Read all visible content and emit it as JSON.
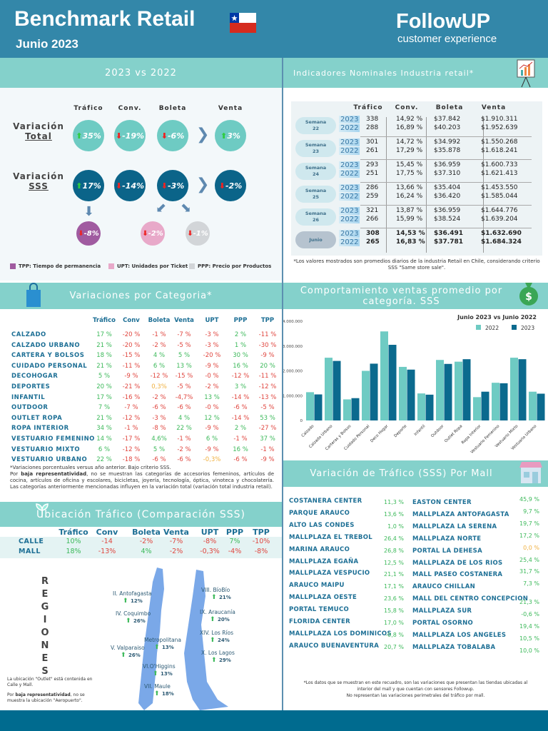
{
  "header": {
    "title": "Benchmark Retail",
    "subtitle": "Junio 2023",
    "logo": "FollowUP",
    "logo_tagline": "customer experience",
    "flag_icon": "chile-flag"
  },
  "bands": {
    "left1": "2023 vs 2022",
    "right1": "Indicadores Nominales Industria retail*",
    "left2": "Variaciones por Categoria*",
    "right2": "Comportamiento ventas promedio por categoría. SSS",
    "left3": "Ubicación Tráfico (Comparación SSS)",
    "right3": "Variación de Tráfico (SSS) Por Mall"
  },
  "summary": {
    "columns": [
      "Tráfico",
      "Conv.",
      "Boleta",
      "Venta"
    ],
    "row_total": {
      "label": "Variación",
      "sublabel": "Total",
      "values": [
        "35%",
        "-19%",
        "-6%",
        "3%"
      ],
      "dirs": [
        "up",
        "down",
        "down",
        "up"
      ]
    },
    "row_sss": {
      "label": "Variación",
      "sublabel": "SSS",
      "values": [
        "17%",
        "-14%",
        "-3%",
        "-2%"
      ],
      "dirs": [
        "up",
        "down",
        "down",
        "down"
      ]
    },
    "breakdown": {
      "tpp": "-8%",
      "upt": "-2%",
      "ppp": "-1%"
    },
    "legend": [
      "TPP: Tiempo de permanencia",
      "UPT: Unidades por Ticket",
      "PPP: Precio por Productos"
    ],
    "colors": {
      "total": "#6ecbc3",
      "sss": "#0b6489",
      "tpp": "#a05ba0",
      "upt": "#e8a9c9",
      "ppp": "#d2d5d8"
    }
  },
  "nominal": {
    "columns": [
      "Tráfico",
      "Conv.",
      "Boleta",
      "Venta"
    ],
    "rows": [
      {
        "label": "Semana",
        "sub": "22",
        "years": [
          "2023",
          "2022"
        ],
        "trafico": [
          "338",
          "288"
        ],
        "conv": [
          "14,92 %",
          "16,89 %"
        ],
        "boleta": [
          "$37.842",
          "$40.203"
        ],
        "venta": [
          "$1.910.311",
          "$1.952.639"
        ]
      },
      {
        "label": "Semana",
        "sub": "23",
        "years": [
          "2023",
          "2022"
        ],
        "trafico": [
          "301",
          "261"
        ],
        "conv": [
          "14,72 %",
          "17,29 %"
        ],
        "boleta": [
          "$34.992",
          "$35.878"
        ],
        "venta": [
          "$1.550.268",
          "$1.618.241"
        ]
      },
      {
        "label": "Semana",
        "sub": "24",
        "years": [
          "2023",
          "2022"
        ],
        "trafico": [
          "293",
          "251"
        ],
        "conv": [
          "15,45 %",
          "17,75 %"
        ],
        "boleta": [
          "$36.959",
          "$37.310"
        ],
        "venta": [
          "$1.600.733",
          "$1.621.413"
        ]
      },
      {
        "label": "Semana",
        "sub": "25",
        "years": [
          "2023",
          "2022"
        ],
        "trafico": [
          "286",
          "259"
        ],
        "conv": [
          "13,66 %",
          "16,24 %"
        ],
        "boleta": [
          "$35.404",
          "$36.420"
        ],
        "venta": [
          "$1.453.550",
          "$1.585.044"
        ]
      },
      {
        "label": "Semana",
        "sub": "26",
        "years": [
          "2023",
          "2022"
        ],
        "trafico": [
          "321",
          "266"
        ],
        "conv": [
          "13,87 %",
          "15,99 %"
        ],
        "boleta": [
          "$36.959",
          "$38.524"
        ],
        "venta": [
          "$1.644.776",
          "$1.639.204"
        ]
      },
      {
        "label": "Junio",
        "sub": "",
        "years": [
          "2023",
          "2022"
        ],
        "trafico": [
          "308",
          "265"
        ],
        "conv": [
          "14,53 %",
          "16,83 %"
        ],
        "boleta": [
          "$36.491",
          "$37.781"
        ],
        "venta": [
          "$1.632.690",
          "$1.684.324"
        ]
      }
    ],
    "note": "*Los valores mostrados son promedios diarios de la industria Retail en Chile, considerando criterio SSS \"Same store sale\"."
  },
  "categories": {
    "columns": [
      "Tráfico",
      "Conv",
      "Boleta",
      "Venta",
      "UPT",
      "PPP",
      "TPP"
    ],
    "rows": [
      {
        "name": "CALZADO",
        "values": [
          "17 %",
          "-20 %",
          "-1 %",
          "-7 %",
          "-3 %",
          "2 %",
          "-11 %"
        ],
        "tones": "grrrrgr"
      },
      {
        "name": "CALZADO URBANO",
        "values": [
          "21 %",
          "-20 %",
          "-2 %",
          "-5 %",
          "-3 %",
          "1 %",
          "-30 %"
        ],
        "tones": "grrrrgr"
      },
      {
        "name": "CARTERA Y BOLSOS",
        "values": [
          "18 %",
          "-15 %",
          "4 %",
          "5 %",
          "-20 %",
          "30 %",
          "-9 %"
        ],
        "tones": "grggrgr"
      },
      {
        "name": "CUIDADO PERSONAL",
        "values": [
          "21 %",
          "-11 %",
          "6 %",
          "13 %",
          "-9 %",
          "16 %",
          "20 %"
        ],
        "tones": "grggrgg"
      },
      {
        "name": "DECOHOGAR",
        "values": [
          "5 %",
          "-9 %",
          "-12 %",
          "-15 %",
          "-0 %",
          "-12 %",
          "-11 %"
        ],
        "tones": "grrrrrr"
      },
      {
        "name": "DEPORTES",
        "values": [
          "20 %",
          "-21 %",
          "0,3%",
          "-5 %",
          "-2 %",
          "3 %",
          "-12 %"
        ],
        "tones": "grorrgr"
      },
      {
        "name": "INFANTIL",
        "values": [
          "17 %",
          "-16 %",
          "-2 %",
          "-4,7%",
          "13 %",
          "-14 %",
          "-13 %"
        ],
        "tones": "grrrgrr"
      },
      {
        "name": "OUTDOOR",
        "values": [
          "7 %",
          "-7 %",
          "-6 %",
          "-6 %",
          "-0 %",
          "-6 %",
          "-5 %"
        ],
        "tones": "grrrrrr"
      },
      {
        "name": "OUTLET ROPA",
        "values": [
          "21 %",
          "-12 %",
          "-3 %",
          "4 %",
          "12 %",
          "-14 %",
          "53 %"
        ],
        "tones": "grrggrg"
      },
      {
        "name": "ROPA INTERIOR",
        "values": [
          "34 %",
          "-1 %",
          "-8 %",
          "22 %",
          "-9 %",
          "2 %",
          "-27 %"
        ],
        "tones": "grrgrgr"
      },
      {
        "name": "VESTUARIO FEMENINO",
        "values": [
          "14 %",
          "-17 %",
          "4,6%",
          "-1 %",
          "6 %",
          "-1 %",
          "37 %"
        ],
        "tones": "grgrgrg"
      },
      {
        "name": "VESTUARIO MIXTO",
        "values": [
          "6 %",
          "-12 %",
          "5 %",
          "-2 %",
          "-9 %",
          "16 %",
          "-1 %"
        ],
        "tones": "grgrrgr"
      },
      {
        "name": "VESTUARIO URBANO",
        "values": [
          "22 %",
          "-18 %",
          "-6 %",
          "-6 %",
          "-0,3%",
          "-6 %",
          "-9 %"
        ],
        "tones": "grrrorr"
      }
    ],
    "note1": "*Variaciones porcentuales versus año anterior. Bajo criterio SSS.",
    "note2_bold": "baja representatividad",
    "note2_pre": "Por ",
    "note2_post": ", no se muestran las categorías de accesorios femeninos, artículos de cocina, artículos de oficina y escolares, bicicletas, joyería, tecnología, óptica, vinoteca y chocolatería. Las categorías anteriormente mencionadas influyen en la variación total (variación total industria retail)."
  },
  "chart_data": {
    "type": "bar",
    "title": "Junio 2023 vs Junio 2022",
    "categories": [
      "Calzado",
      "Calzado Urbano",
      "Carteras y Bolsos",
      "Cuidado Personal",
      "Deco Hogar",
      "Deporte",
      "Infantil",
      "Outdoor",
      "Outlet Ropa",
      "Ropa Interior",
      "Vestuario Femenino",
      "Vestuario Mixto",
      "Vestuario Urbano"
    ],
    "series": [
      {
        "name": "2022",
        "color": "#6ecbc3",
        "values": [
          1140000,
          2530000,
          850000,
          2000000,
          3590000,
          2160000,
          1090000,
          2440000,
          2370000,
          940000,
          1520000,
          2530000,
          1160000
        ]
      },
      {
        "name": "2023",
        "color": "#0b6a8e",
        "values": [
          1050000,
          2400000,
          900000,
          2290000,
          3050000,
          2050000,
          1040000,
          2280000,
          2470000,
          1160000,
          1500000,
          2470000,
          1080000
        ]
      }
    ],
    "yticks": [
      "0",
      "1.000.000",
      "2.000.000",
      "3.000.000",
      "4.000.000"
    ],
    "ylim": [
      0,
      4000000
    ],
    "legend": "top-right",
    "grid": false
  },
  "location": {
    "columns": [
      "Tráfico",
      "Conv",
      "Boleta",
      "Venta",
      "UPT",
      "PPP",
      "TPP"
    ],
    "rows": [
      {
        "name": "CALLE",
        "values": [
          "10%",
          "-14",
          "-2%",
          "-7%",
          "-8%",
          "7%",
          "-10%"
        ],
        "tones": "grrrrgr"
      },
      {
        "name": "MALL",
        "values": [
          "18%",
          "-13%",
          "4%",
          "-2%",
          "-0,3%",
          "-4%",
          "-8%"
        ],
        "tones": "grgrrrr"
      }
    ],
    "regions_title": "REGIONES",
    "regions": [
      {
        "name": "II. Antofagasta",
        "value": "12%"
      },
      {
        "name": "IV. Coquimbo",
        "value": "26%"
      },
      {
        "name": "Metropolitana",
        "value": "13%"
      },
      {
        "name": "V. Valparaiso",
        "value": "26%"
      },
      {
        "name": "VI.O'Higgins",
        "value": "13%"
      },
      {
        "name": "VII. Maule",
        "value": "18%"
      },
      {
        "name": "VIII. BíoBío",
        "value": "21%"
      },
      {
        "name": "IX. Araucanía",
        "value": "20%"
      },
      {
        "name": "XIV. Los Ríos",
        "value": "24%"
      },
      {
        "name": "X. Los Lagos",
        "value": "29%"
      }
    ],
    "note1": "La ubicación \"Outlet\" está contenida en Calle y Mall.",
    "note2_pre": "Por ",
    "note2_bold": "baja representatividad",
    "note2_post": ", no se muestra la ubicación \"Aeropuerto\"."
  },
  "malls": {
    "left": [
      {
        "name": "COSTANERA CENTER",
        "value": "11,3 %",
        "tone": "g"
      },
      {
        "name": "PARQUE ARAUCO",
        "value": "13,6 %",
        "tone": "g"
      },
      {
        "name": "ALTO LAS CONDES",
        "value": "1,0 %",
        "tone": "g"
      },
      {
        "name": "MALLPLAZA EL TREBOL",
        "value": "26,4 %",
        "tone": "g"
      },
      {
        "name": "MARINA ARAUCO",
        "value": "26,8 %",
        "tone": "g"
      },
      {
        "name": "MALLPLAZA EGAÑA",
        "value": "12,5 %",
        "tone": "g"
      },
      {
        "name": "MALLPLAZA VESPUCIO",
        "value": "21,1 %",
        "tone": "g"
      },
      {
        "name": "ARAUCO MAIPU",
        "value": "17,1 %",
        "tone": "g"
      },
      {
        "name": "MALLPLAZA OESTE",
        "value": "23,6 %",
        "tone": "g"
      },
      {
        "name": "PORTAL TEMUCO",
        "value": "15,8 %",
        "tone": "g"
      },
      {
        "name": "FLORIDA CENTER",
        "value": "17,0 %",
        "tone": "g"
      },
      {
        "name": "MALLPLAZA LOS DOMINICOS",
        "value": "-0,8 %",
        "tone": "g"
      },
      {
        "name": "ARAUCO BUENAVENTURA",
        "value": "20,7 %",
        "tone": "g"
      }
    ],
    "right": [
      {
        "name": "EASTON CENTER",
        "value": "45,9 %",
        "tone": "g"
      },
      {
        "name": "MALLPLAZA ANTOFAGASTA",
        "value": "9,7 %",
        "tone": "g"
      },
      {
        "name": "MALLPLAZA LA SERENA",
        "value": "19,7 %",
        "tone": "g"
      },
      {
        "name": "MALLPLAZA NORTE",
        "value": "17,2 %",
        "tone": "g"
      },
      {
        "name": "PORTAL LA DEHESA",
        "value": "0,0 %",
        "tone": "o"
      },
      {
        "name": "MALLPLAZA DE LOS RIOS",
        "value": "25,4 %",
        "tone": "g"
      },
      {
        "name": "MALL PASEO COSTANERA",
        "value": "31,7 %",
        "tone": "g"
      },
      {
        "name": "ARAUCO CHILLAN",
        "value": "7,3 %",
        "tone": "g"
      },
      {
        "name": "MALL DEL CENTRO CONCEPCION",
        "value": "21,3 %",
        "tone": "g"
      },
      {
        "name": "MALLPLAZA SUR",
        "value": "-0,6 %",
        "tone": "g"
      },
      {
        "name": "PORTAL OSORNO",
        "value": "19,4 %",
        "tone": "g"
      },
      {
        "name": "MALLPLAZA LOS ANGELES",
        "value": "10,5 %",
        "tone": "g"
      },
      {
        "name": "MALLPLAZA TOBALABA",
        "value": "10,0 %",
        "tone": "g"
      }
    ],
    "note": [
      "*Los datos que se muestran en este recuadro, son las variaciones que presentan las tiendas ubicadas al",
      "interior del mall y que cuentan con sensores Followup.",
      "No representan las variaciones perimetrales del tráfico por mall."
    ]
  }
}
